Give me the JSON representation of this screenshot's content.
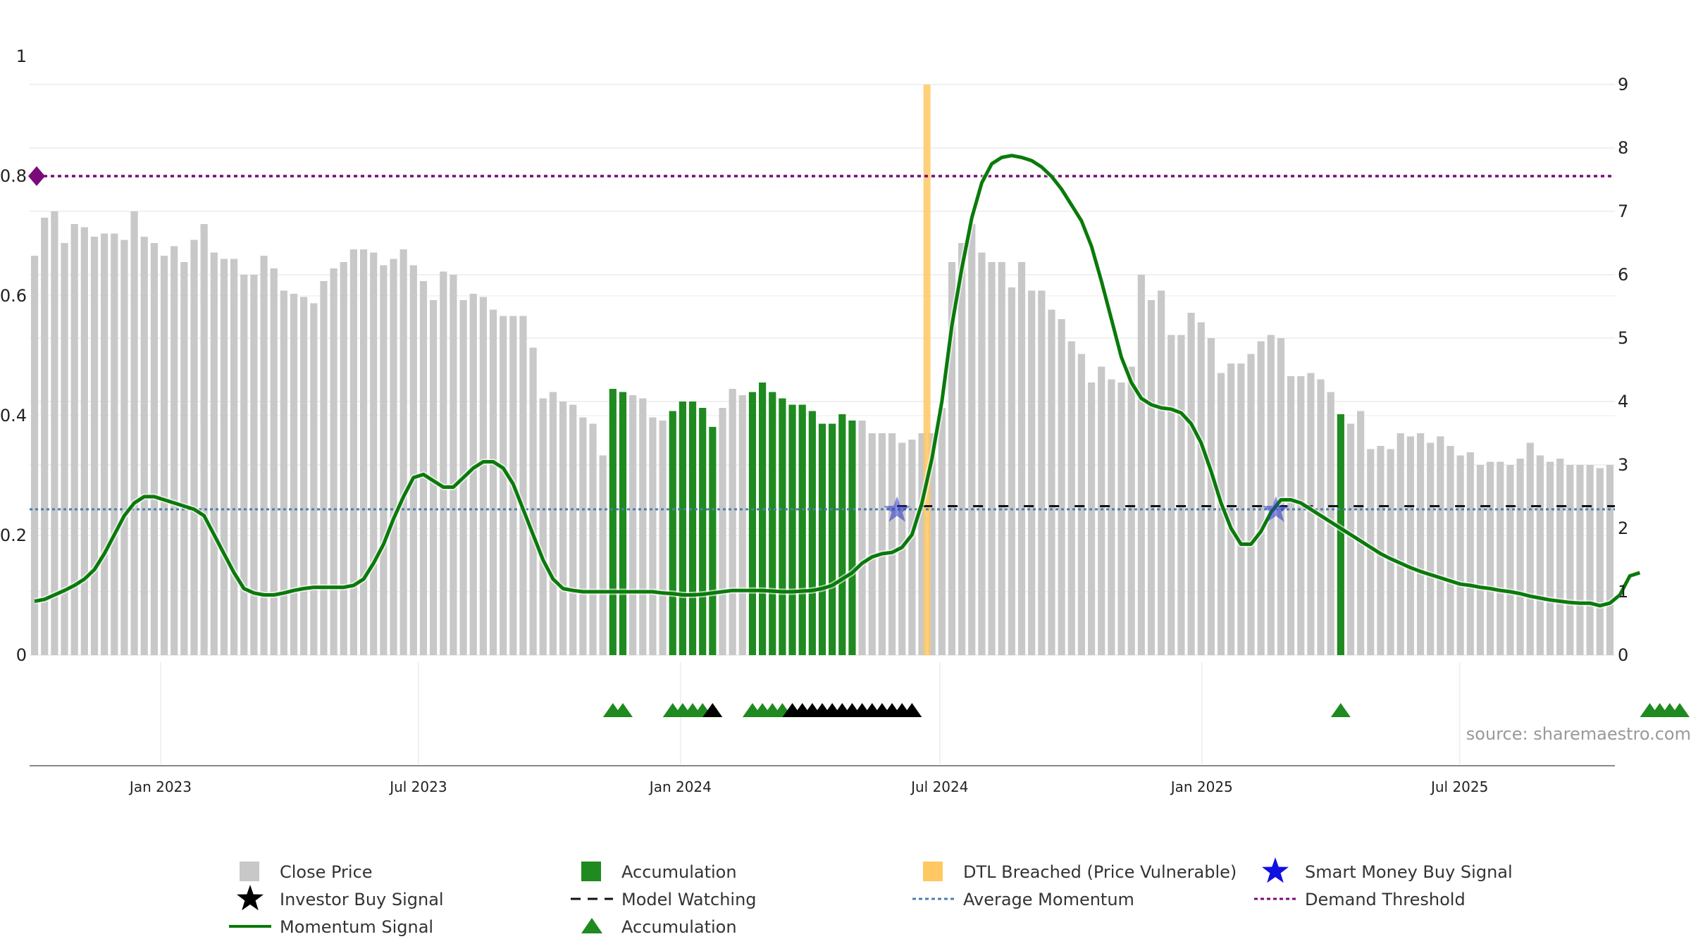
{
  "source_note": "source: sharemaestro.com",
  "colors": {
    "close_price": "#c8c8c8",
    "accumulation": "#1f8a1f",
    "momentum": "#0a7a0a",
    "average_momentum": "#4a7fb0",
    "demand_threshold": "#7a0a7a",
    "dtl_breached": "#ffc864",
    "smart_money": "#2a35c8",
    "investor": "#000000"
  },
  "legend": [
    {
      "label": "Close Price",
      "icon": "gray-square-icon"
    },
    {
      "label": "Accumulation",
      "icon": "green-square-icon"
    },
    {
      "label": "DTL Breached (Price Vulnerable)",
      "icon": "orange-square-icon"
    },
    {
      "label": "Smart Money Buy Signal",
      "icon": "blue-star-icon"
    },
    {
      "label": "Investor Buy Signal",
      "icon": "black-star-icon"
    },
    {
      "label": "Model Watching",
      "icon": "black-dash-line-icon"
    },
    {
      "label": "Average Momentum",
      "icon": "blue-dotted-line-icon"
    },
    {
      "label": "Demand Threshold",
      "icon": "purple-dotted-line-icon"
    },
    {
      "label": "Momentum Signal",
      "icon": "green-line-icon"
    },
    {
      "label": "Accumulation",
      "icon": "green-triangle-icon"
    }
  ],
  "chart_data": {
    "type": "bar",
    "x_start": "2022-10-01",
    "bar_step_days": 7,
    "left_axis": {
      "ylim": [
        0,
        0.95
      ],
      "ticks": [
        "0",
        "0.2",
        "0.4",
        "0.6",
        "0.8",
        "1"
      ]
    },
    "right_axis": {
      "ylim": [
        0,
        9
      ],
      "ticks": [
        "0",
        "1",
        "2",
        "3",
        "4",
        "5",
        "6",
        "7",
        "8",
        "9"
      ]
    },
    "x_ticks": [
      "Jan 2023",
      "Jul 2023",
      "Jan 2024",
      "Jul 2024",
      "Jan 2025",
      "Jul 2025"
    ],
    "close_price": [
      6.3,
      6.9,
      7.0,
      6.5,
      6.8,
      6.75,
      6.6,
      6.65,
      6.65,
      6.55,
      7.0,
      6.6,
      6.5,
      6.3,
      6.45,
      6.2,
      6.55,
      6.8,
      6.35,
      6.25,
      6.25,
      6.0,
      6.0,
      6.3,
      6.1,
      5.75,
      5.7,
      5.65,
      5.55,
      5.9,
      6.1,
      6.2,
      6.4,
      6.4,
      6.35,
      6.15,
      6.25,
      6.4,
      6.15,
      5.9,
      5.6,
      6.05,
      6.0,
      5.6,
      5.7,
      5.65,
      5.45,
      5.35,
      5.35,
      5.35,
      4.85,
      4.05,
      4.15,
      4.0,
      3.95,
      3.75,
      3.65,
      3.15,
      4.2,
      4.15,
      4.1,
      4.05,
      3.75,
      3.7,
      3.85,
      4.0,
      4.0,
      3.9,
      3.6,
      3.9,
      4.2,
      4.1,
      4.15,
      4.3,
      4.15,
      4.05,
      3.95,
      3.95,
      3.85,
      3.65,
      3.65,
      3.8,
      3.7,
      3.7,
      3.5,
      3.5,
      3.5,
      3.35,
      3.4,
      3.5,
      3.5,
      3.9,
      6.2,
      6.5,
      6.8,
      6.35,
      6.2,
      6.2,
      5.8,
      6.2,
      5.75,
      5.75,
      5.45,
      5.3,
      4.95,
      4.75,
      4.3,
      4.55,
      4.35,
      4.3,
      4.55,
      6.0,
      5.6,
      5.75,
      5.05,
      5.05,
      5.4,
      5.25,
      5.0,
      4.45,
      4.6,
      4.6,
      4.75,
      4.95,
      5.05,
      5.0,
      4.4,
      4.4,
      4.45,
      4.35,
      4.15,
      3.8,
      3.65,
      3.85,
      3.25,
      3.3,
      3.25,
      3.5,
      3.45,
      3.5,
      3.35,
      3.45,
      3.3,
      3.15,
      3.2,
      3.0,
      3.05,
      3.05,
      3.0,
      3.1,
      3.35,
      3.15,
      3.05,
      3.1,
      3.0,
      3.0,
      3.0,
      2.95,
      3.0
    ],
    "accumulation_bars": [
      58,
      59,
      64,
      65,
      66,
      67,
      68,
      72,
      73,
      74,
      75,
      76,
      77,
      78,
      79,
      80,
      81,
      82,
      131,
      162,
      163,
      164,
      165
    ],
    "momentum_signal": [
      0.85,
      0.88,
      0.95,
      1.02,
      1.1,
      1.2,
      1.35,
      1.6,
      1.9,
      2.2,
      2.4,
      2.5,
      2.5,
      2.45,
      2.4,
      2.35,
      2.3,
      2.2,
      1.9,
      1.6,
      1.3,
      1.05,
      0.98,
      0.95,
      0.95,
      0.98,
      1.02,
      1.05,
      1.07,
      1.07,
      1.07,
      1.07,
      1.1,
      1.2,
      1.45,
      1.75,
      2.15,
      2.5,
      2.8,
      2.85,
      2.75,
      2.65,
      2.65,
      2.8,
      2.95,
      3.05,
      3.05,
      2.95,
      2.7,
      2.3,
      1.9,
      1.5,
      1.2,
      1.05,
      1.02,
      1.0,
      1.0,
      1.0,
      1.0,
      1.0,
      1.0,
      1.0,
      1.0,
      0.98,
      0.97,
      0.95,
      0.95,
      0.96,
      0.98,
      1.0,
      1.02,
      1.02,
      1.02,
      1.02,
      1.01,
      1.0,
      1.0,
      1.01,
      1.02,
      1.05,
      1.1,
      1.2,
      1.3,
      1.45,
      1.55,
      1.6,
      1.62,
      1.7,
      1.9,
      2.4,
      3.1,
      4.0,
      5.2,
      6.1,
      6.9,
      7.45,
      7.75,
      7.85,
      7.88,
      7.85,
      7.8,
      7.7,
      7.55,
      7.35,
      7.1,
      6.85,
      6.45,
      5.9,
      5.3,
      4.7,
      4.3,
      4.05,
      3.95,
      3.9,
      3.88,
      3.82,
      3.65,
      3.35,
      2.9,
      2.4,
      2.0,
      1.75,
      1.75,
      1.95,
      2.25,
      2.45,
      2.45,
      2.4,
      2.3,
      2.2,
      2.1,
      2.0,
      1.9,
      1.8,
      1.7,
      1.6,
      1.52,
      1.45,
      1.38,
      1.32,
      1.27,
      1.22,
      1.17,
      1.12,
      1.1,
      1.07,
      1.05,
      1.02,
      1.0,
      0.97,
      0.93,
      0.9,
      0.87,
      0.85,
      0.83,
      0.82,
      0.82,
      0.78,
      0.82,
      0.95,
      1.25,
      1.3
    ],
    "average_momentum": 2.3,
    "demand_threshold": 0.8,
    "model_watching_level": 2.35,
    "model_watching_x_start": "2024-06-01",
    "dtl_breached_at": "2024-06-22",
    "smart_money_buy_signals": [
      [
        "2024-06-01",
        2.35
      ],
      [
        "2025-02-22",
        2.35
      ]
    ],
    "accumulation_triangles": [
      58,
      59,
      64,
      65,
      66,
      67,
      72,
      73,
      74,
      75,
      162,
      163,
      164,
      165,
      131
    ],
    "investor_buy_triangles": [
      68,
      76,
      77,
      78,
      79,
      80,
      81,
      82,
      83,
      84,
      85,
      86,
      87,
      88
    ]
  }
}
